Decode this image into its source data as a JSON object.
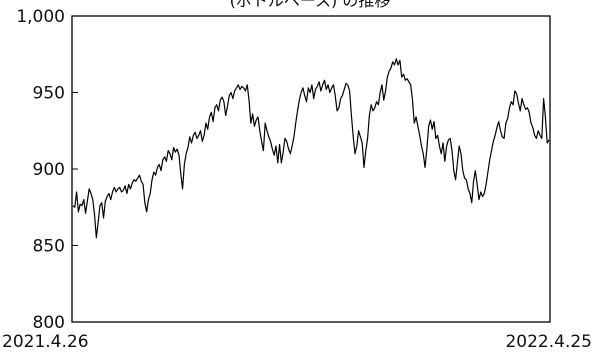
{
  "chart_data": {
    "type": "line",
    "title": "(ボトルベース) の推移",
    "xlabel": "",
    "ylabel": "",
    "ylim": [
      800,
      1000
    ],
    "yticks": [
      800,
      850,
      900,
      950,
      1000
    ],
    "ytick_labels": [
      "800",
      "850",
      "900",
      "950",
      "1,000"
    ],
    "xtick_labels": [
      "2021.4.26",
      "2022.4.25"
    ],
    "grid": false,
    "legend": "none",
    "line_color": "#000000",
    "series": [
      {
        "values": [
          876,
          875,
          885,
          872,
          877,
          876,
          880,
          871,
          879,
          887,
          884,
          880,
          870,
          855,
          865,
          876,
          878,
          868,
          879,
          882,
          884,
          880,
          885,
          888,
          885,
          887,
          888,
          885,
          886,
          889,
          884,
          890,
          887,
          891,
          893,
          892,
          894,
          896,
          892,
          890,
          878,
          872,
          880,
          884,
          893,
          898,
          896,
          901,
          903,
          899,
          906,
          908,
          905,
          912,
          910,
          906,
          914,
          911,
          913,
          909,
          897,
          887,
          903,
          910,
          914,
          921,
          917,
          922,
          924,
          920,
          922,
          925,
          918,
          922,
          930,
          926,
          934,
          937,
          931,
          940,
          942,
          938,
          945,
          947,
          944,
          935,
          941,
          948,
          950,
          946,
          951,
          953,
          955,
          952,
          954,
          953,
          951,
          955,
          945,
          930,
          936,
          928,
          932,
          934,
          925,
          918,
          912,
          930,
          925,
          921,
          918,
          913,
          909,
          915,
          904,
          916,
          904,
          911,
          920,
          918,
          913,
          910,
          915,
          921,
          930,
          938,
          945,
          950,
          953,
          948,
          944,
          953,
          950,
          955,
          946,
          952,
          954,
          957,
          951,
          955,
          958,
          952,
          955,
          950,
          953,
          955,
          948,
          938,
          940,
          946,
          948,
          952,
          956,
          955,
          951,
          935,
          921,
          910,
          915,
          925,
          921,
          917,
          901,
          912,
          920,
          935,
          942,
          938,
          940,
          944,
          942,
          950,
          955,
          945,
          951,
          960,
          964,
          966,
          970,
          968,
          972,
          968,
          971,
          960,
          962,
          958,
          959,
          957,
          955,
          945,
          930,
          934,
          928,
          922,
          915,
          910,
          901,
          913,
          928,
          932,
          926,
          931,
          920,
          922,
          915,
          910,
          917,
          905,
          915,
          919,
          920,
          912,
          899,
          893,
          904,
          915,
          910,
          899,
          894,
          893,
          887,
          884,
          878,
          892,
          899,
          890,
          880,
          885,
          882,
          884,
          890,
          898,
          906,
          912,
          918,
          922,
          927,
          931,
          925,
          921,
          920,
          930,
          933,
          940,
          944,
          942,
          951,
          949,
          943,
          938,
          946,
          942,
          939,
          940,
          937,
          930,
          927,
          922,
          920,
          925,
          922,
          920,
          946,
          934,
          917,
          919
        ]
      }
    ]
  }
}
